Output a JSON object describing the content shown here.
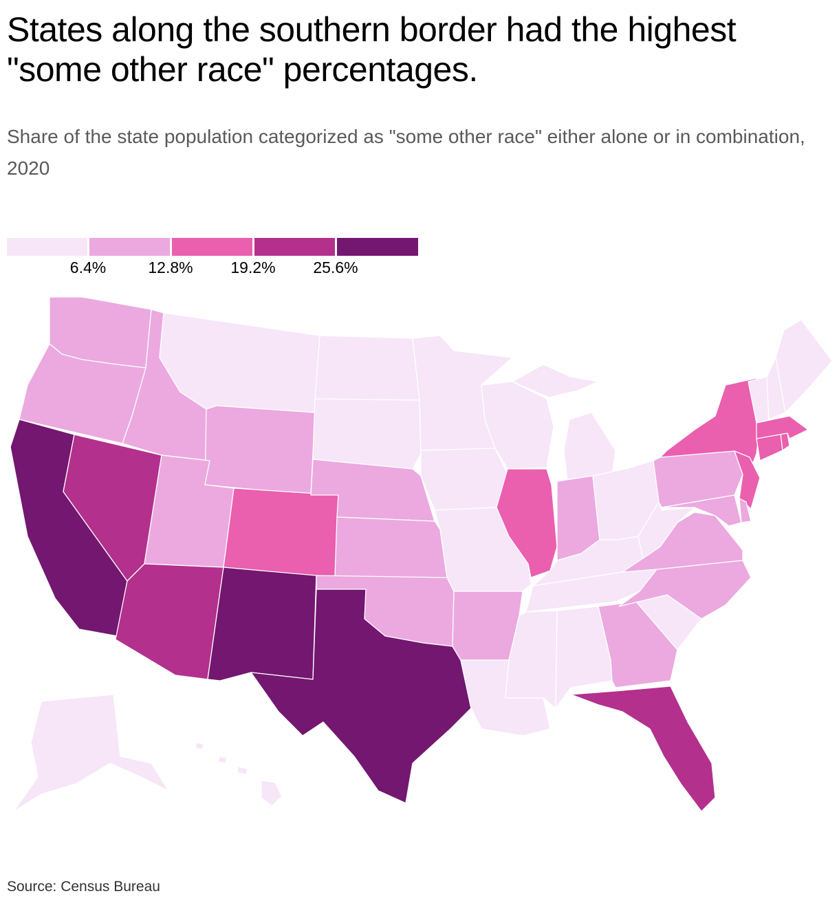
{
  "title": "States along the southern border had the highest \"some other race\" percentages.",
  "subtitle": "Share of the state population categorized as \"some other race\" either alone or in combination, 2020",
  "source": "Source: Census Bureau",
  "legend": {
    "colors": [
      "#f6e6f8",
      "#eba9df",
      "#ea5fae",
      "#b3308d",
      "#731770"
    ],
    "thresholds": [
      "6.4%",
      "12.8%",
      "19.2%",
      "25.6%"
    ]
  },
  "map": {
    "bins": {
      "WA": 1,
      "OR": 1,
      "CA": 4,
      "NV": 3,
      "ID": 1,
      "MT": 0,
      "WY": 1,
      "UT": 1,
      "AZ": 3,
      "CO": 2,
      "NM": 4,
      "ND": 0,
      "SD": 0,
      "NE": 1,
      "KS": 1,
      "OK": 1,
      "TX": 4,
      "MN": 0,
      "IA": 0,
      "MO": 0,
      "AR": 1,
      "LA": 0,
      "WI": 0,
      "IL": 2,
      "MI": 0,
      "IN": 1,
      "OH": 0,
      "KY": 0,
      "TN": 0,
      "MS": 0,
      "AL": 0,
      "GA": 1,
      "FL": 3,
      "SC": 0,
      "NC": 1,
      "VA": 1,
      "WV": 0,
      "PA": 1,
      "NY": 2,
      "NJ": 2,
      "DE": 1,
      "MD": 1,
      "CT": 2,
      "RI": 2,
      "MA": 2,
      "VT": 0,
      "NH": 0,
      "ME": 0,
      "AK": 0,
      "HI": 0
    }
  }
}
